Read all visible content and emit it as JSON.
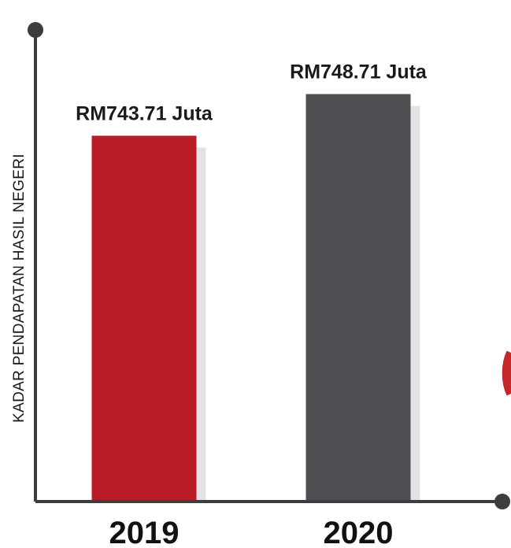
{
  "chart_data": {
    "type": "bar",
    "categories": [
      "2019",
      "2020"
    ],
    "values": [
      743.71,
      748.71
    ],
    "value_labels": [
      "RM743.71 Juta",
      "RM748.71 Juta"
    ],
    "bar_colors": [
      "#b91c24",
      "#4e4f52"
    ],
    "title": "",
    "xlabel": "",
    "ylabel": "KADAR PENDAPATAN HASIL NEGERI",
    "ylim": [
      700,
      760
    ],
    "grid": false,
    "legend": "none"
  },
  "style": {
    "axis_color": "#3d3d3f",
    "shadow_color": "#e3e3e3",
    "decor_color": "#c62828"
  }
}
